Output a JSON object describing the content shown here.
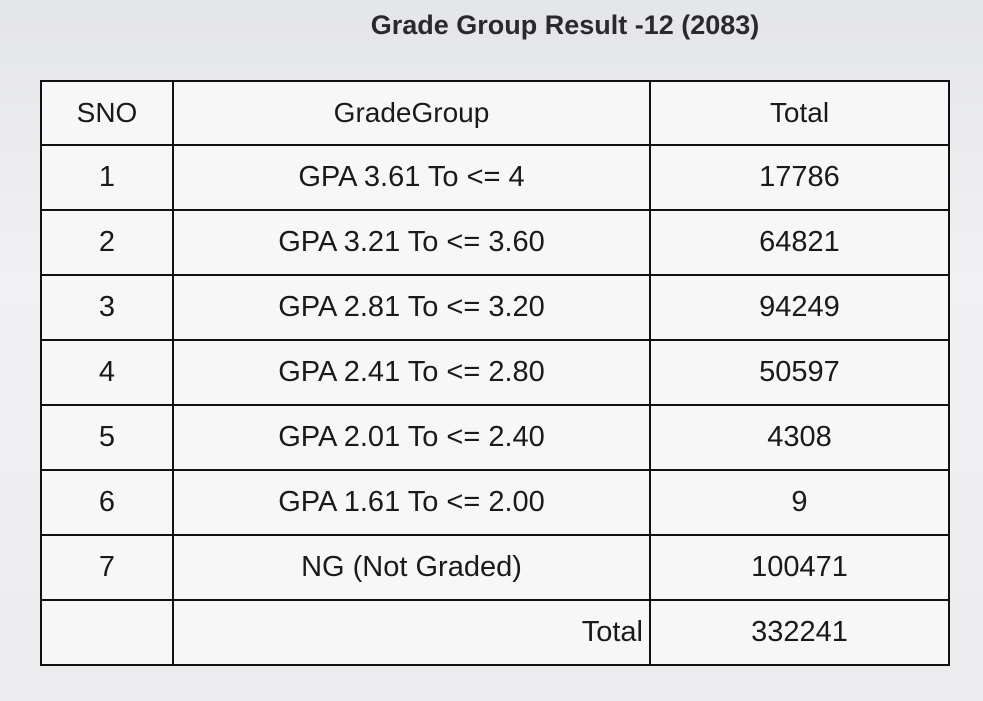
{
  "header": {
    "title": "Grade Group Result -12 (2083)"
  },
  "table": {
    "columns": [
      "SNO",
      "GradeGroup",
      "Total"
    ],
    "rows": [
      [
        1,
        "GPA 3.61 To <= 4",
        17786
      ],
      [
        2,
        "GPA 3.21 To <= 3.60",
        64821
      ],
      [
        3,
        "GPA 2.81 To <= 3.20",
        94249
      ],
      [
        4,
        "GPA 2.41 To <= 2.80",
        50597
      ],
      [
        5,
        "GPA 2.01 To <= 2.40",
        4308
      ],
      [
        6,
        "GPA 1.61 To <= 2.00",
        9
      ],
      [
        7,
        "NG (Not Graded)",
        100471
      ]
    ],
    "footer": {
      "label": "Total",
      "value": 332241
    }
  }
}
